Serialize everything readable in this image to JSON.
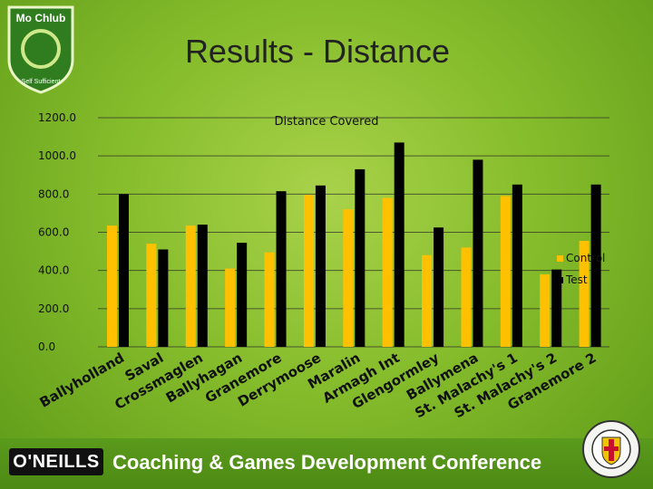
{
  "slide": {
    "title": "Results - Distance",
    "logo_text_top": "Mo Chlub",
    "logo_text_bottom": "Self Sufficient",
    "footer_brand": "O'NEILLS",
    "footer_text": "Coaching & Games Development Conference"
  },
  "colors": {
    "control": "#ffc000",
    "test": "#000000",
    "grid": "#2a2a2a",
    "label": "#111111"
  },
  "chart_data": {
    "type": "bar",
    "title": "Distance Covered",
    "categories": [
      "Ballyholland",
      "Saval",
      "Crossmaglen",
      "Ballyhagan",
      "Granemore",
      "Derrymoose",
      "Maralin",
      "Armagh Int",
      "Glengormley",
      "Ballymena",
      "St. Malachy's 1",
      "St. Malachy's 2",
      "Granemore 2"
    ],
    "series": [
      {
        "name": "Control",
        "values": [
          635,
          540,
          635,
          410,
          495,
          795,
          720,
          780,
          480,
          520,
          790,
          380,
          555
        ]
      },
      {
        "name": "Test",
        "values": [
          800,
          510,
          640,
          545,
          815,
          845,
          930,
          1070,
          625,
          980,
          850,
          405,
          850
        ]
      }
    ],
    "y_ticks": [
      "0.0",
      "200.0",
      "400.0",
      "600.0",
      "800.0",
      "1000.0",
      "1200.0"
    ],
    "ylim": [
      0,
      1200
    ],
    "grid": true,
    "legend": "right"
  }
}
